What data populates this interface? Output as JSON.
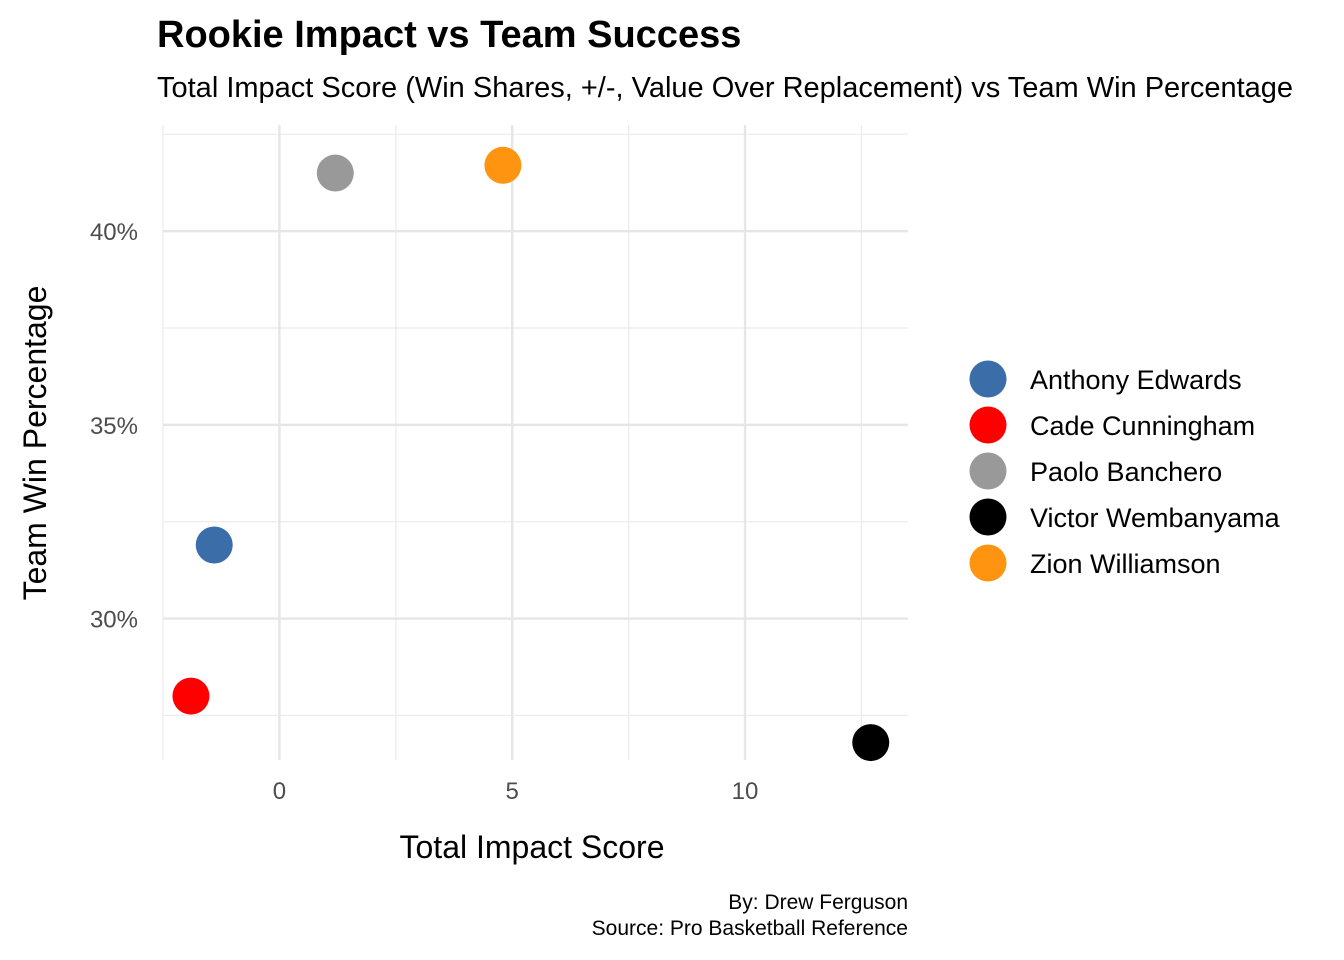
{
  "chart_data": {
    "type": "scatter",
    "title": "Rookie Impact vs Team Success",
    "subtitle": "Total Impact Score (Win Shares, +/-, Value Over Replacement) vs Team Win Percentage",
    "xlabel": "Total Impact Score",
    "ylabel": "Team Win Percentage",
    "xlim": [
      -2.5,
      13.5
    ],
    "ylim": [
      0.2635,
      0.4274
    ],
    "x_ticks": [
      0,
      5,
      10
    ],
    "x_tick_labels": [
      "0",
      "5",
      "10"
    ],
    "y_ticks": [
      0.3,
      0.35,
      0.4
    ],
    "y_tick_labels": [
      "30%",
      "35%",
      "40%"
    ],
    "grid": true,
    "legend_position": "right",
    "series": [
      {
        "name": "Anthony Edwards",
        "color": "#3b6ea8",
        "x": -1.4,
        "y": 0.319
      },
      {
        "name": "Cade Cunningham",
        "color": "#ff0000",
        "x": -1.9,
        "y": 0.28
      },
      {
        "name": "Paolo Banchero",
        "color": "#999999",
        "x": 1.2,
        "y": 0.415
      },
      {
        "name": "Victor Wembanyama",
        "color": "#000000",
        "x": 12.7,
        "y": 0.268
      },
      {
        "name": "Zion Williamson",
        "color": "#ff9410",
        "x": 4.8,
        "y": 0.417
      }
    ],
    "caption": [
      "By: Drew Ferguson",
      "Source: Pro Basketball Reference"
    ]
  }
}
